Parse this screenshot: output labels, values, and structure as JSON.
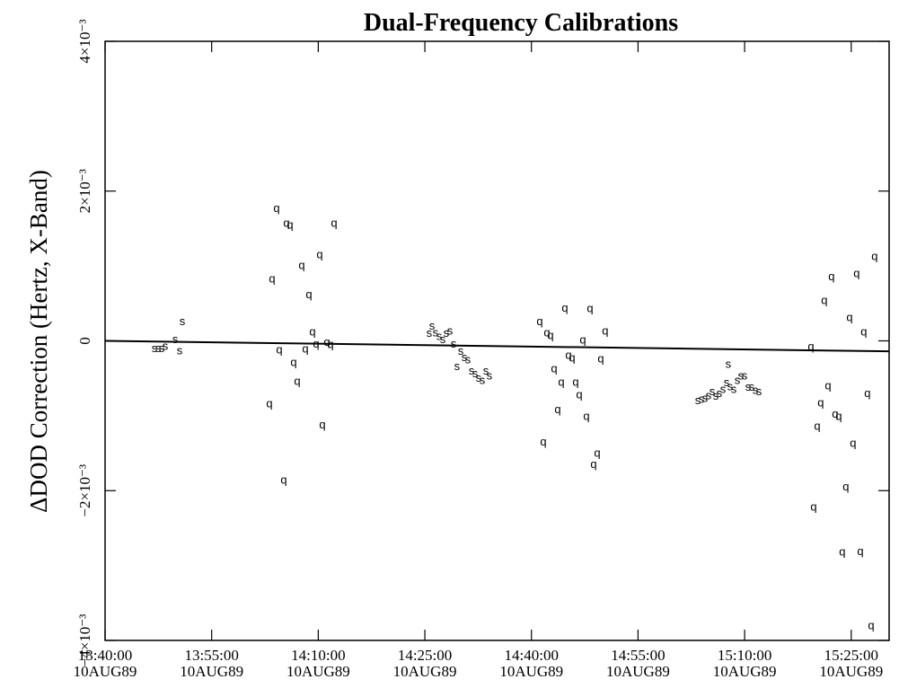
{
  "chart_data": {
    "type": "scatter",
    "title": "Dual-Frequency  Calibrations",
    "y_label": "ΔDOD Correction  (Hertz, X-Band)",
    "xlim": [
      "13:40:00",
      "15:30:20"
    ],
    "ylim": [
      -0.004,
      0.004
    ],
    "xticks": [
      {
        "value": "13:40:00",
        "label": "13:40:00 10AUG89"
      },
      {
        "value": "13:55:00",
        "label": "13:55:00 10AUG89"
      },
      {
        "value": "14:10:00",
        "label": "14:10:00 10AUG89"
      },
      {
        "value": "14:25:00",
        "label": "14:25:00 10AUG89"
      },
      {
        "value": "14:40:00",
        "label": "14:40:00 10AUG89"
      },
      {
        "value": "14:55:00",
        "label": "14:55:00 10AUG89"
      },
      {
        "value": "15:10:00",
        "label": "15:10:00 10AUG89"
      },
      {
        "value": "15:25:00",
        "label": "15:25:00 10AUG89"
      }
    ],
    "yticks": [
      {
        "value": -0.004,
        "label": "−4×10⁻³"
      },
      {
        "value": -0.002,
        "label": "−2×10⁻³"
      },
      0,
      {
        "value": 0.002,
        "label": "2×10⁻³"
      },
      {
        "value": 0.004,
        "label": "4×10⁻³"
      }
    ],
    "fit_line": {
      "x": [
        "13:40:00",
        "15:30:20"
      ],
      "values": [
        0,
        -0.00014
      ]
    },
    "series": [
      {
        "marker": "s",
        "x": [
          "13:46:57",
          "13:47:28",
          "13:47:58",
          "13:48:28",
          "13:49:52",
          "13:50:29",
          "13:50:52"
        ],
        "values": [
          -0.0001,
          -0.0001,
          -0.0001,
          -7e-05,
          2e-05,
          -0.00013,
          0.00026
        ]
      },
      {
        "marker": "q",
        "x": [
          "14:03:08",
          "14:03:30",
          "14:04:08",
          "14:04:31",
          "14:05:09",
          "14:05:32",
          "14:06:02",
          "14:06:32",
          "14:07:03",
          "14:07:41",
          "14:08:11",
          "14:08:41",
          "14:09:12",
          "14:09:42",
          "14:10:12",
          "14:10:35",
          "14:11:13",
          "14:11:43",
          "14:12:14"
        ],
        "values": [
          -0.00084,
          0.00083,
          0.00177,
          -0.00012,
          -0.00186,
          0.00157,
          0.00155,
          -0.00029,
          -0.00054,
          0.00101,
          -0.00011,
          0.00062,
          0.00012,
          -4e-05,
          0.00115,
          -0.00112,
          -2e-05,
          -5e-05,
          0.00157
        ]
      },
      {
        "marker": "s",
        "x": [
          "14:25:37",
          "14:26:00",
          "14:26:30",
          "14:27:01",
          "14:27:31",
          "14:28:01",
          "14:28:32",
          "14:29:02",
          "14:29:32",
          "14:30:03",
          "14:30:33",
          "14:31:03",
          "14:31:34",
          "14:32:04",
          "14:32:34",
          "14:33:05",
          "14:33:35",
          "14:34:05"
        ],
        "values": [
          0.0001,
          0.0002,
          0.00011,
          6e-05,
          2e-05,
          0.0001,
          0.00013,
          -4e-05,
          -0.00034,
          -0.00014,
          -0.00022,
          -0.00025,
          -0.0004,
          -0.00044,
          -0.0005,
          -0.00053,
          -0.0004,
          -0.00047
        ]
      },
      {
        "marker": "q",
        "x": [
          "14:41:10",
          "14:41:40",
          "14:42:11",
          "14:42:41",
          "14:43:11",
          "14:43:42",
          "14:44:12",
          "14:44:42",
          "14:45:13",
          "14:45:43",
          "14:46:13",
          "14:46:44",
          "14:47:14",
          "14:47:44",
          "14:48:15",
          "14:48:45",
          "14:49:15",
          "14:49:46",
          "14:50:23"
        ],
        "values": [
          0.00026,
          -0.00135,
          0.00011,
          7e-05,
          -0.00037,
          -0.00092,
          -0.00055,
          0.00044,
          -0.00019,
          -0.00023,
          -0.00055,
          -0.00072,
          1e-05,
          -0.00101,
          0.00043,
          -0.00165,
          -0.0015,
          -0.00024,
          0.00013
        ]
      },
      {
        "marker": "s",
        "x": [
          "15:03:25",
          "15:03:55",
          "15:04:25",
          "15:04:55",
          "15:05:26",
          "15:05:56",
          "15:06:26",
          "15:06:57",
          "15:07:27",
          "15:07:42",
          "15:07:57",
          "15:08:28",
          "15:08:58",
          "15:09:28",
          "15:09:59",
          "15:10:29",
          "15:10:59",
          "15:11:30",
          "15:12:00"
        ],
        "values": [
          -0.0008,
          -0.00078,
          -0.00077,
          -0.00073,
          -0.00068,
          -0.00074,
          -0.0007,
          -0.00065,
          -0.00056,
          -0.00031,
          -0.00061,
          -0.00065,
          -0.00053,
          -0.00047,
          -0.00047,
          -0.00062,
          -0.00062,
          -0.00066,
          -0.00068
        ]
      },
      {
        "marker": "q",
        "x": [
          "15:19:20",
          "15:19:43",
          "15:20:13",
          "15:20:43",
          "15:21:13",
          "15:21:44",
          "15:22:14",
          "15:22:44",
          "15:23:15",
          "15:23:45",
          "15:24:15",
          "15:24:46",
          "15:25:16",
          "15:25:46",
          "15:26:17",
          "15:26:47",
          "15:27:17",
          "15:27:48",
          "15:28:18"
        ],
        "values": [
          -8e-05,
          -0.00222,
          -0.00114,
          -0.00083,
          0.00054,
          -0.0006,
          0.00086,
          -0.00098,
          -0.00101,
          -0.00282,
          -0.00195,
          0.00031,
          -0.00137,
          0.0009,
          -0.00281,
          0.00012,
          -0.0007,
          -0.0038,
          0.00113
        ]
      }
    ]
  }
}
